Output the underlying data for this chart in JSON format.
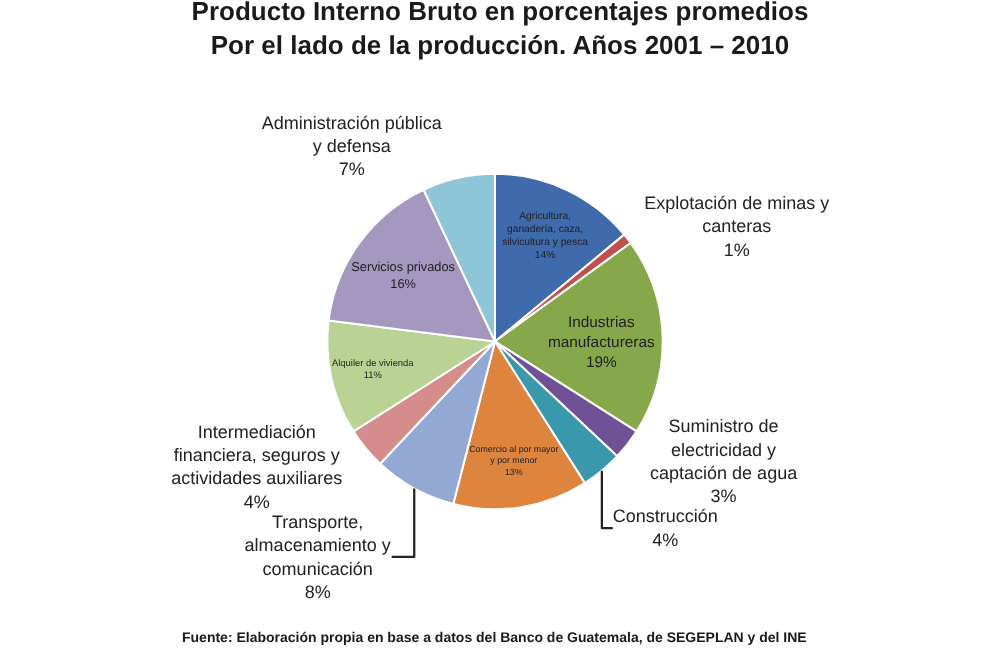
{
  "chart_data": {
    "type": "pie",
    "title": "Producto Interno Bruto en porcentajes promedios",
    "subtitle": "Por el lado de la producción. Años 2001 – 2010",
    "categories": [
      "Agricultura, ganadería, caza, silvicultura y pesca",
      "Explotación de minas y canteras",
      "Industrias manufactureras",
      "Suministro de electricidad y captación de agua",
      "Construcción",
      "Comercio al por mayor y por menor",
      "Transporte, almacenamiento y comunicación",
      "Intermediación financiera, seguros y actividades auxiliares",
      "Alquiler de vivienda",
      "Servicios privados",
      "Administración pública y defensa"
    ],
    "values": [
      14,
      1,
      19,
      3,
      4,
      13,
      8,
      4,
      11,
      16,
      7
    ],
    "value_labels": [
      "14%",
      "1%",
      "19%",
      "3%",
      "4%",
      "13%",
      "8%",
      "4%",
      "11%",
      "16%",
      "7%"
    ],
    "colors": [
      "#3f6aab",
      "#c0504d",
      "#86a84a",
      "#6f5295",
      "#3a98ad",
      "#dd843f",
      "#93a9d3",
      "#d48d8b",
      "#bad394",
      "#a497c0",
      "#8ec6d8"
    ],
    "annotations": [
      "Fuente: Elaboración propia en base a datos del Banco de Guatemala, de SEGEPLAN y del INE"
    ],
    "legend": false
  }
}
